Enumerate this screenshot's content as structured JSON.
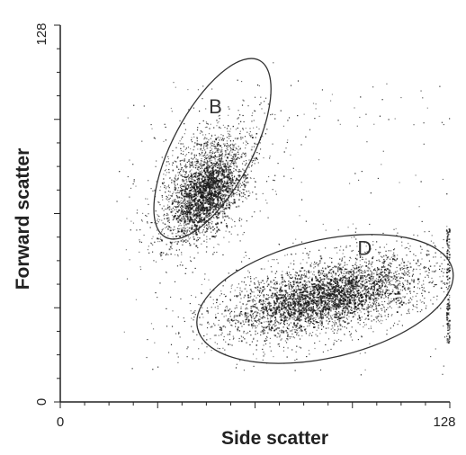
{
  "chart_data": {
    "type": "scatter",
    "title": "",
    "xlabel": "Side scatter",
    "ylabel": "Forward scatter",
    "xlim": [
      0,
      128
    ],
    "ylim": [
      0,
      128
    ],
    "x_ticks": [
      {
        "value": 0,
        "label": "0"
      },
      {
        "value": 128,
        "label": "128"
      }
    ],
    "y_ticks": [
      {
        "value": 0,
        "label": "0"
      },
      {
        "value": 128,
        "label": "128"
      }
    ],
    "grid": false,
    "legend": "none",
    "point_color": "#1a1a1a",
    "gate_color": "#333333",
    "populations": [
      {
        "label": "B",
        "gate": {
          "cx": 50,
          "cy": 86,
          "rx": 13,
          "ry": 34,
          "angle_deg": -28
        },
        "cloud": {
          "cx": 48,
          "cy": 74,
          "sx": 6.5,
          "sy": 12,
          "angle_deg": -30
        },
        "points": 1900,
        "dense_core": {
          "cx": 48,
          "cy": 70,
          "sx": 4,
          "sy": 7,
          "points": 900
        }
      },
      {
        "label": "D",
        "gate": {
          "cx": 87,
          "cy": 35,
          "rx": 43,
          "ry": 20,
          "angle_deg": 13
        },
        "cloud": {
          "cx": 88,
          "cy": 36,
          "sx": 20,
          "sy": 6.5,
          "angle_deg": 13
        },
        "points": 2600,
        "dense_core": {
          "cx": 86,
          "cy": 35,
          "sx": 13,
          "sy": 4,
          "points": 1100
        }
      }
    ],
    "background_noise": {
      "points": 300,
      "x_range": [
        22,
        128
      ],
      "y_range": [
        8,
        110
      ]
    },
    "edge_points": {
      "x": 127,
      "y_range": [
        20,
        60
      ],
      "points": 140
    }
  }
}
